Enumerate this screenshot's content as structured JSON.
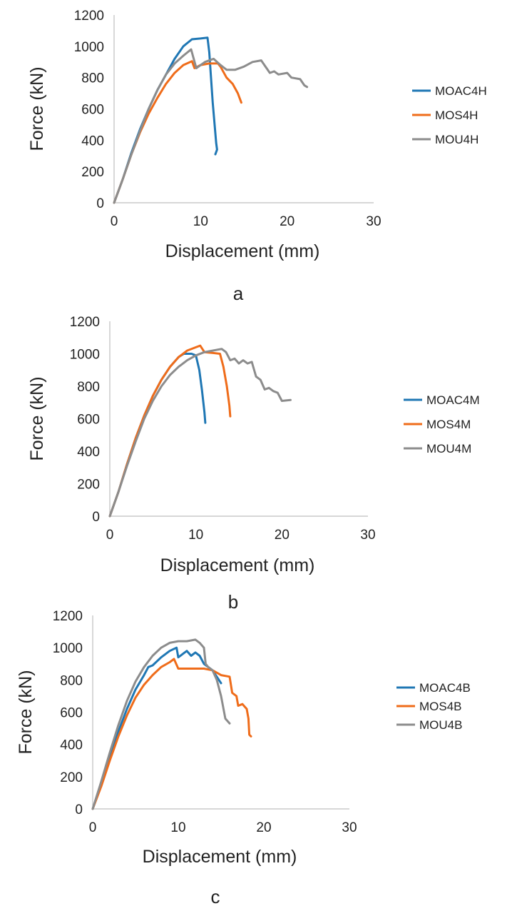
{
  "chart_data": [
    {
      "type": "line",
      "panel_label": "a",
      "xlabel": "Displacement (mm)",
      "ylabel": "Force (kN)",
      "xlim": [
        0,
        30
      ],
      "ylim": [
        0,
        1200
      ],
      "xticks": [
        0,
        10,
        20,
        30
      ],
      "yticks": [
        0,
        200,
        400,
        600,
        800,
        1000,
        1200
      ],
      "grid": false,
      "legend_position": "right",
      "series": [
        {
          "name": "MOAC4H",
          "color": "#1f77b4",
          "points": [
            [
              0,
              0
            ],
            [
              1,
              150
            ],
            [
              2,
              320
            ],
            [
              3,
              470
            ],
            [
              4,
              600
            ],
            [
              5,
              720
            ],
            [
              6,
              820
            ],
            [
              7,
              920
            ],
            [
              8,
              1000
            ],
            [
              9,
              1045
            ],
            [
              10,
              1050
            ],
            [
              10.8,
              1055
            ],
            [
              11,
              960
            ],
            [
              11.4,
              640
            ],
            [
              11.8,
              380
            ],
            [
              11.9,
              340
            ],
            [
              11.7,
              310
            ]
          ]
        },
        {
          "name": "MOS4H",
          "color": "#ef6c1a",
          "points": [
            [
              0,
              0
            ],
            [
              1,
              150
            ],
            [
              2,
              310
            ],
            [
              3,
              450
            ],
            [
              4,
              570
            ],
            [
              5,
              670
            ],
            [
              6,
              760
            ],
            [
              7,
              830
            ],
            [
              8,
              880
            ],
            [
              9,
              905
            ],
            [
              9.3,
              860
            ],
            [
              10,
              880
            ],
            [
              11,
              890
            ],
            [
              12,
              890
            ],
            [
              12.3,
              870
            ],
            [
              13,
              800
            ],
            [
              13.7,
              760
            ],
            [
              14.3,
              700
            ],
            [
              14.7,
              640
            ]
          ]
        },
        {
          "name": "MOU4H",
          "color": "#8c8c8c",
          "points": [
            [
              0,
              0
            ],
            [
              1,
              150
            ],
            [
              2,
              310
            ],
            [
              3,
              460
            ],
            [
              4,
              600
            ],
            [
              5,
              720
            ],
            [
              6,
              820
            ],
            [
              7,
              890
            ],
            [
              8,
              940
            ],
            [
              8.9,
              980
            ],
            [
              9.5,
              860
            ],
            [
              10.5,
              900
            ],
            [
              11.5,
              920
            ],
            [
              12.3,
              880
            ],
            [
              13,
              850
            ],
            [
              14,
              850
            ],
            [
              15,
              870
            ],
            [
              16,
              900
            ],
            [
              17,
              910
            ],
            [
              18,
              830
            ],
            [
              18.5,
              840
            ],
            [
              19,
              820
            ],
            [
              20,
              830
            ],
            [
              20.5,
              800
            ],
            [
              21.5,
              790
            ],
            [
              22,
              750
            ],
            [
              22.3,
              740
            ]
          ]
        }
      ]
    },
    {
      "type": "line",
      "panel_label": "b",
      "xlabel": "Displacement (mm)",
      "ylabel": "Force (kN)",
      "xlim": [
        0,
        30
      ],
      "ylim": [
        0,
        1200
      ],
      "xticks": [
        0,
        10,
        20,
        30
      ],
      "yticks": [
        0,
        200,
        400,
        600,
        800,
        1000,
        1200
      ],
      "grid": false,
      "legend_position": "right",
      "series": [
        {
          "name": "MOAC4M",
          "color": "#1f77b4",
          "points": [
            [
              0,
              0
            ],
            [
              1,
              150
            ],
            [
              2,
              320
            ],
            [
              3,
              480
            ],
            [
              4,
              620
            ],
            [
              5,
              740
            ],
            [
              6,
              840
            ],
            [
              7,
              920
            ],
            [
              8,
              980
            ],
            [
              8.6,
              1000
            ],
            [
              9.5,
              1000
            ],
            [
              10,
              990
            ],
            [
              10.4,
              900
            ],
            [
              10.7,
              780
            ],
            [
              11,
              640
            ],
            [
              11.1,
              575
            ]
          ]
        },
        {
          "name": "MOS4M",
          "color": "#ef6c1a",
          "points": [
            [
              0,
              0
            ],
            [
              1,
              150
            ],
            [
              2,
              320
            ],
            [
              3,
              480
            ],
            [
              4,
              620
            ],
            [
              5,
              740
            ],
            [
              6,
              840
            ],
            [
              7,
              920
            ],
            [
              8,
              980
            ],
            [
              9,
              1020
            ],
            [
              10,
              1040
            ],
            [
              10.5,
              1050
            ],
            [
              11,
              1010
            ],
            [
              12,
              1005
            ],
            [
              12.8,
              1000
            ],
            [
              13.2,
              920
            ],
            [
              13.6,
              800
            ],
            [
              13.9,
              680
            ],
            [
              14,
              615
            ]
          ]
        },
        {
          "name": "MOU4M",
          "color": "#8c8c8c",
          "points": [
            [
              0,
              0
            ],
            [
              1,
              150
            ],
            [
              2,
              310
            ],
            [
              3,
              460
            ],
            [
              4,
              600
            ],
            [
              5,
              710
            ],
            [
              6,
              800
            ],
            [
              7,
              870
            ],
            [
              8,
              920
            ],
            [
              9,
              960
            ],
            [
              10,
              990
            ],
            [
              11,
              1010
            ],
            [
              12,
              1020
            ],
            [
              13,
              1030
            ],
            [
              13.5,
              1010
            ],
            [
              14,
              960
            ],
            [
              14.5,
              970
            ],
            [
              15,
              940
            ],
            [
              15.5,
              960
            ],
            [
              16,
              940
            ],
            [
              16.5,
              950
            ],
            [
              17,
              860
            ],
            [
              17.5,
              840
            ],
            [
              18,
              780
            ],
            [
              18.5,
              790
            ],
            [
              19,
              770
            ],
            [
              19.5,
              760
            ],
            [
              20,
              710
            ],
            [
              21,
              715
            ]
          ]
        }
      ]
    },
    {
      "type": "line",
      "panel_label": "c",
      "xlabel": "Displacement (mm)",
      "ylabel": "Force (kN)",
      "xlim": [
        0,
        30
      ],
      "ylim": [
        0,
        1200
      ],
      "xticks": [
        0,
        10,
        20,
        30
      ],
      "yticks": [
        0,
        200,
        400,
        600,
        800,
        1000,
        1200
      ],
      "grid": false,
      "legend_position": "right",
      "series": [
        {
          "name": "MOAC4B",
          "color": "#1f77b4",
          "points": [
            [
              0,
              0
            ],
            [
              1,
              150
            ],
            [
              2,
              320
            ],
            [
              3,
              480
            ],
            [
              4,
              620
            ],
            [
              5,
              740
            ],
            [
              6,
              830
            ],
            [
              6.5,
              880
            ],
            [
              7,
              890
            ],
            [
              8,
              940
            ],
            [
              9,
              980
            ],
            [
              9.8,
              1000
            ],
            [
              10,
              940
            ],
            [
              10.5,
              960
            ],
            [
              11,
              980
            ],
            [
              11.5,
              950
            ],
            [
              12,
              970
            ],
            [
              12.5,
              950
            ],
            [
              13,
              900
            ],
            [
              13.5,
              880
            ],
            [
              14,
              860
            ],
            [
              14.5,
              820
            ],
            [
              15,
              780
            ]
          ]
        },
        {
          "name": "MOS4B",
          "color": "#ef6c1a",
          "points": [
            [
              0,
              0
            ],
            [
              1,
              140
            ],
            [
              2,
              300
            ],
            [
              3,
              450
            ],
            [
              4,
              580
            ],
            [
              5,
              690
            ],
            [
              6,
              770
            ],
            [
              7,
              830
            ],
            [
              8,
              880
            ],
            [
              9,
              910
            ],
            [
              9.5,
              930
            ],
            [
              10,
              870
            ],
            [
              11,
              870
            ],
            [
              12,
              870
            ],
            [
              13,
              870
            ],
            [
              14,
              860
            ],
            [
              15,
              830
            ],
            [
              16,
              820
            ],
            [
              16.3,
              720
            ],
            [
              16.8,
              700
            ],
            [
              17,
              640
            ],
            [
              17.5,
              650
            ],
            [
              18,
              620
            ],
            [
              18.2,
              560
            ],
            [
              18.3,
              460
            ],
            [
              18.5,
              450
            ]
          ]
        },
        {
          "name": "MOU4B",
          "color": "#8c8c8c",
          "points": [
            [
              0,
              0
            ],
            [
              1,
              170
            ],
            [
              2,
              350
            ],
            [
              3,
              520
            ],
            [
              4,
              670
            ],
            [
              5,
              790
            ],
            [
              6,
              880
            ],
            [
              7,
              950
            ],
            [
              8,
              1000
            ],
            [
              9,
              1030
            ],
            [
              10,
              1040
            ],
            [
              11,
              1040
            ],
            [
              12,
              1050
            ],
            [
              12.5,
              1030
            ],
            [
              13,
              1000
            ],
            [
              13.2,
              900
            ],
            [
              13.5,
              880
            ],
            [
              14,
              860
            ],
            [
              14.5,
              800
            ],
            [
              15,
              700
            ],
            [
              15.5,
              560
            ],
            [
              16,
              530
            ]
          ]
        }
      ]
    }
  ]
}
